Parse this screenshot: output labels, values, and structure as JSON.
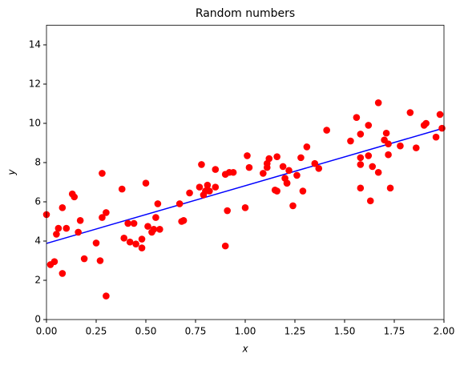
{
  "chart_data": {
    "type": "scatter",
    "title": "Random numbers",
    "xlabel": "x",
    "ylabel": "y",
    "xlim": [
      0,
      2
    ],
    "ylim": [
      0,
      15
    ],
    "xticks": [
      {
        "value": 0,
        "label": "0.00"
      },
      {
        "value": 0.25,
        "label": "0.25"
      },
      {
        "value": 0.5,
        "label": "0.50"
      },
      {
        "value": 0.75,
        "label": "0.75"
      },
      {
        "value": 1,
        "label": "1.00"
      },
      {
        "value": 1.25,
        "label": "1.25"
      },
      {
        "value": 1.5,
        "label": "1.50"
      },
      {
        "value": 1.75,
        "label": "1.75"
      },
      {
        "value": 2,
        "label": "2.00"
      }
    ],
    "yticks": [
      0,
      2,
      4,
      6,
      8,
      10,
      12,
      14
    ],
    "grid": false,
    "points": {
      "color": "#ff0000",
      "x": [
        0.0,
        0.02,
        0.04,
        0.05,
        0.06,
        0.08,
        0.08,
        0.1,
        0.13,
        0.14,
        0.16,
        0.17,
        0.19,
        0.25,
        0.27,
        0.28,
        0.28,
        0.3,
        0.3,
        0.38,
        0.39,
        0.41,
        0.42,
        0.44,
        0.45,
        0.48,
        0.48,
        0.5,
        0.51,
        0.53,
        0.54,
        0.55,
        0.56,
        0.57,
        0.67,
        0.68,
        0.69,
        0.72,
        0.77,
        0.78,
        0.79,
        0.8,
        0.81,
        0.82,
        0.85,
        0.85,
        0.9,
        0.9,
        0.91,
        0.92,
        0.94,
        1.0,
        1.01,
        1.02,
        1.09,
        1.11,
        1.12,
        1.11,
        1.15,
        1.16,
        1.16,
        1.19,
        1.2,
        1.21,
        1.21,
        1.22,
        1.24,
        1.26,
        1.28,
        1.29,
        1.31,
        1.35,
        1.37,
        1.41,
        1.53,
        1.56,
        1.58,
        1.58,
        1.58,
        1.58,
        1.62,
        1.62,
        1.63,
        1.64,
        1.67,
        1.67,
        1.7,
        1.71,
        1.72,
        1.72,
        1.73,
        1.78,
        1.83,
        1.86,
        1.9,
        1.91,
        1.96,
        1.98,
        1.99
      ],
      "y": [
        5.35,
        2.8,
        2.95,
        4.35,
        4.65,
        5.7,
        2.35,
        4.65,
        6.4,
        6.25,
        4.45,
        5.05,
        3.1,
        3.9,
        3.0,
        7.45,
        5.2,
        5.45,
        1.2,
        6.65,
        4.15,
        4.9,
        3.95,
        4.9,
        3.85,
        4.1,
        3.65,
        6.95,
        4.75,
        4.45,
        4.6,
        5.2,
        5.9,
        4.6,
        5.9,
        5.0,
        5.05,
        6.45,
        6.75,
        7.9,
        6.35,
        6.55,
        6.85,
        6.55,
        6.75,
        7.65,
        3.75,
        7.4,
        5.55,
        7.5,
        7.5,
        5.7,
        8.35,
        7.75,
        7.45,
        7.95,
        8.2,
        7.75,
        6.6,
        6.55,
        8.3,
        7.8,
        7.2,
        6.95,
        6.95,
        7.6,
        5.8,
        7.35,
        8.25,
        6.55,
        8.8,
        7.95,
        7.7,
        9.65,
        9.1,
        10.3,
        6.7,
        9.45,
        8.25,
        7.9,
        8.35,
        9.9,
        6.05,
        7.8,
        7.5,
        11.05,
        9.15,
        9.5,
        8.95,
        8.4,
        6.7,
        8.85,
        10.55,
        8.75,
        9.9,
        10.0,
        9.3,
        10.45,
        9.75
      ]
    },
    "fit_line": {
      "color": "#0000ff",
      "x": [
        0,
        2
      ],
      "y": [
        3.88,
        9.76
      ]
    }
  }
}
